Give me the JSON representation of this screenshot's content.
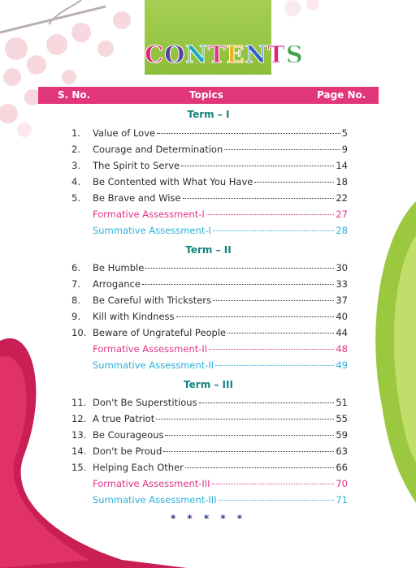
{
  "title": {
    "letters": [
      "C",
      "O",
      "N",
      "T",
      "E",
      "N",
      "T",
      "S"
    ],
    "colors": [
      "#e4227c",
      "#5a3fa0",
      "#15a5c5",
      "#e0338a",
      "#f0b21c",
      "#2a63c3",
      "#e4227c",
      "#3fa34d"
    ]
  },
  "header": {
    "col1": "S. No.",
    "col2": "Topics",
    "col3": "Page No."
  },
  "terms": [
    "Term – I",
    "Term – II",
    "Term – III"
  ],
  "entries": [
    {
      "num": "1.",
      "topic": "Value of Love",
      "page": "5",
      "kind": "lesson"
    },
    {
      "num": "2.",
      "topic": "Courage and Determination",
      "page": "9",
      "kind": "lesson"
    },
    {
      "num": "3.",
      "topic": "The Spirit to Serve",
      "page": "14",
      "kind": "lesson"
    },
    {
      "num": "4.",
      "topic": "Be Contented with What You Have",
      "page": "18",
      "kind": "lesson"
    },
    {
      "num": "5.",
      "topic": "Be Brave and Wise",
      "page": "22",
      "kind": "lesson"
    },
    {
      "num": "",
      "topic": "Formative Assessment-I",
      "page": "27",
      "kind": "formative"
    },
    {
      "num": "",
      "topic": "Summative Assessment-I",
      "page": "28",
      "kind": "summative"
    },
    {
      "num": "6.",
      "topic": "Be Humble",
      "page": "30",
      "kind": "lesson"
    },
    {
      "num": "7.",
      "topic": "Arrogance",
      "page": "33",
      "kind": "lesson"
    },
    {
      "num": "8.",
      "topic": "Be Careful with Tricksters",
      "page": "37",
      "kind": "lesson"
    },
    {
      "num": "9.",
      "topic": "Kill with Kindness",
      "page": "40",
      "kind": "lesson"
    },
    {
      "num": "10.",
      "topic": "Beware of Ungrateful People",
      "page": "44",
      "kind": "lesson"
    },
    {
      "num": "",
      "topic": "Formative Assessment-II",
      "page": "48",
      "kind": "formative"
    },
    {
      "num": "",
      "topic": "Summative Assessment-II",
      "page": "49",
      "kind": "summative"
    },
    {
      "num": "11.",
      "topic": "Don't Be Superstitious",
      "page": "51",
      "kind": "lesson"
    },
    {
      "num": "12.",
      "topic": "A true Patriot",
      "page": "55",
      "kind": "lesson"
    },
    {
      "num": "13.",
      "topic": "Be Courageous",
      "page": "59",
      "kind": "lesson"
    },
    {
      "num": "14.",
      "topic": "Don't be Proud",
      "page": "63",
      "kind": "lesson"
    },
    {
      "num": "15.",
      "topic": "Helping Each Other",
      "page": "66",
      "kind": "lesson"
    },
    {
      "num": "",
      "topic": "Formative Assessment-III",
      "page": "70",
      "kind": "formative"
    },
    {
      "num": "",
      "topic": "Summative Assessment-III",
      "page": "71",
      "kind": "summative"
    }
  ],
  "stars": "* * * * *",
  "colors": {
    "header_bar": "#e2367a",
    "term": "#15837e",
    "formative": "#e0338a",
    "summative": "#2bb0d8",
    "title_box": "#9bc84a"
  }
}
